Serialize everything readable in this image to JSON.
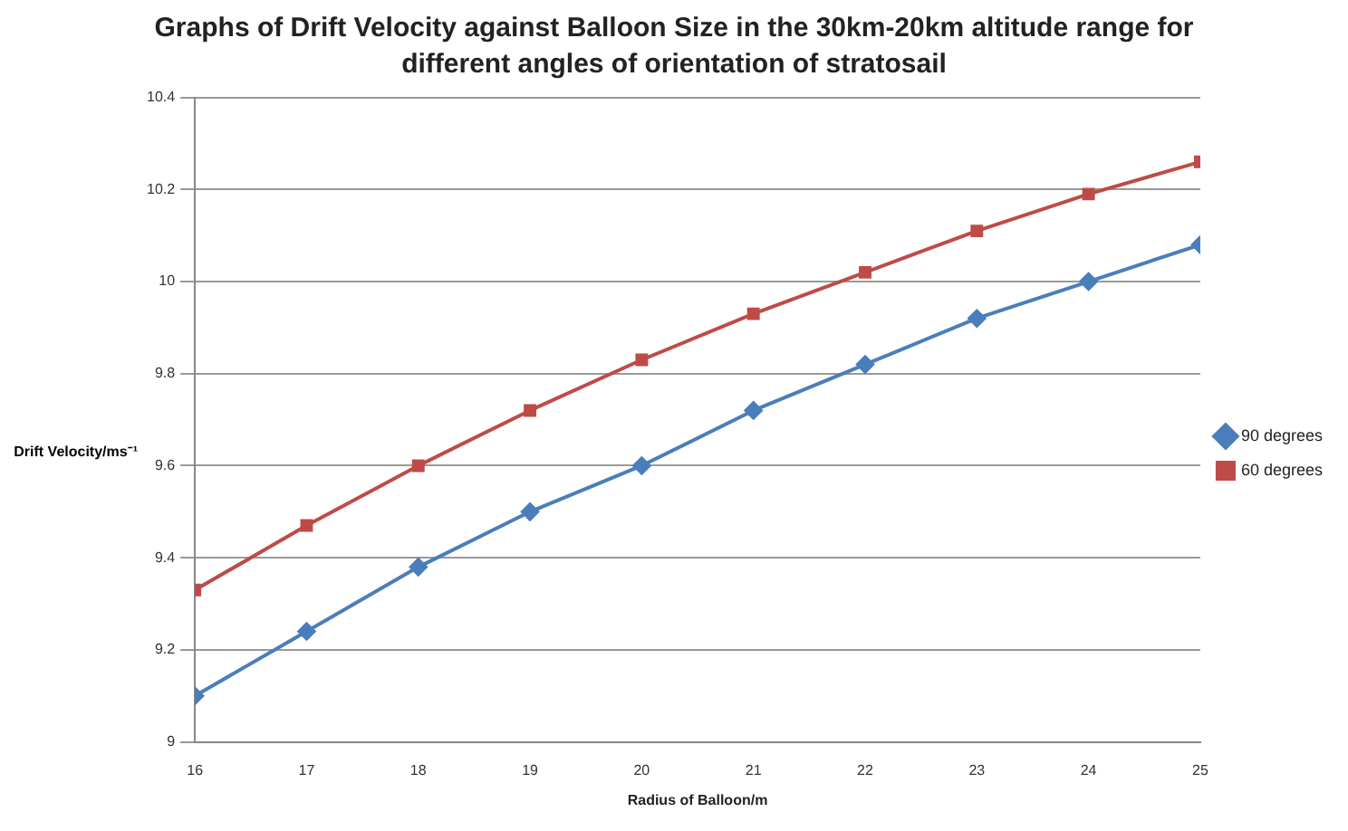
{
  "chart_data": {
    "type": "line",
    "title": "Graphs of Drift Velocity against Balloon Size in the 30km-20km altitude range for different angles of orientation of stratosail",
    "xlabel": "Radius of Balloon/m",
    "ylabel": "Drift Velocity/ms⁻¹",
    "x": [
      16,
      17,
      18,
      19,
      20,
      21,
      22,
      23,
      24,
      25
    ],
    "series": [
      {
        "name": "90 degrees",
        "color": "#4a7ebb",
        "marker": "diamond",
        "values": [
          9.1,
          9.24,
          9.38,
          9.5,
          9.6,
          9.72,
          9.82,
          9.92,
          10.0,
          10.08
        ]
      },
      {
        "name": "60 degrees",
        "color": "#be4b48",
        "marker": "square",
        "values": [
          9.33,
          9.47,
          9.6,
          9.72,
          9.83,
          9.93,
          10.02,
          10.11,
          10.19,
          10.26
        ]
      }
    ],
    "xlim": [
      16,
      25
    ],
    "xticks": [
      16,
      17,
      18,
      19,
      20,
      21,
      22,
      23,
      24,
      25
    ],
    "ylim": [
      9,
      10.4
    ],
    "yticks": [
      9,
      9.2,
      9.4,
      9.6,
      9.8,
      10,
      10.2,
      10.4
    ],
    "grid": "y",
    "legend": "right",
    "line_style": "solid"
  }
}
